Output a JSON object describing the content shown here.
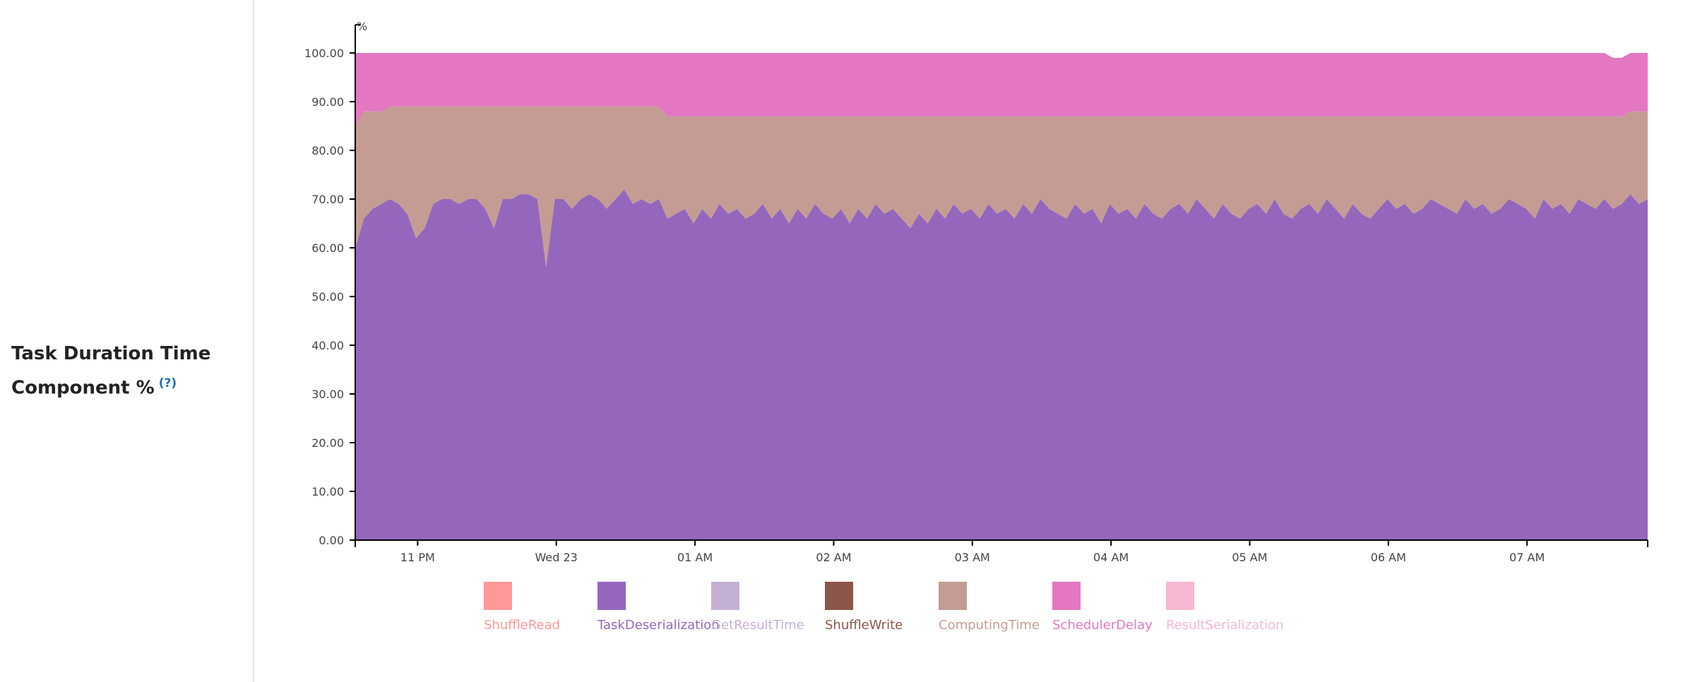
{
  "metric": {
    "title": "Task Duration Time Component %",
    "help": "(?)"
  },
  "chart_data": {
    "type": "area",
    "stacked": true,
    "ylabel": "%",
    "ylim": [
      0,
      100
    ],
    "yticks": [
      "0.00",
      "10.00",
      "20.00",
      "30.00",
      "40.00",
      "50.00",
      "60.00",
      "70.00",
      "80.00",
      "90.00",
      "100.00"
    ],
    "x_time_range_hours": [
      22.55,
      31.87
    ],
    "xticks": [
      {
        "label": "11 PM",
        "hour": 23
      },
      {
        "label": "Wed 23",
        "hour": 24
      },
      {
        "label": "01 AM",
        "hour": 25
      },
      {
        "label": "02 AM",
        "hour": 26
      },
      {
        "label": "03 AM",
        "hour": 27
      },
      {
        "label": "04 AM",
        "hour": 28
      },
      {
        "label": "05 AM",
        "hour": 29
      },
      {
        "label": "06 AM",
        "hour": 30
      },
      {
        "label": "07 AM",
        "hour": 31
      }
    ],
    "series": [
      {
        "name": "ShuffleRead",
        "color": "#ff9896",
        "values": [
          0,
          0,
          0,
          0,
          0,
          0,
          0,
          0,
          0,
          0,
          0,
          0,
          0,
          0,
          0,
          0,
          0,
          0,
          0,
          0,
          0,
          0,
          0,
          0,
          0,
          0,
          0,
          0,
          0,
          0,
          0,
          0,
          0,
          0,
          0,
          0,
          0,
          0,
          0,
          0,
          0,
          0,
          0,
          0,
          0,
          0,
          0,
          0,
          0,
          0,
          0,
          0,
          0,
          0,
          0,
          0,
          0,
          0,
          0,
          0,
          0,
          0,
          0,
          0,
          0,
          0,
          0,
          0,
          0,
          0,
          0,
          0,
          0,
          0,
          0,
          0,
          0,
          0,
          0,
          0,
          0,
          0,
          0,
          0,
          0,
          0,
          0,
          0,
          0,
          0,
          0,
          0,
          0,
          0,
          0,
          0,
          0,
          0,
          0,
          0,
          0,
          0,
          0,
          0,
          0,
          0,
          0,
          0,
          0,
          0,
          0,
          0,
          0,
          0,
          0,
          0,
          0,
          0,
          0,
          0,
          0,
          0,
          0,
          0,
          0,
          0,
          0,
          0,
          0,
          0,
          0,
          0,
          0,
          0,
          0,
          0,
          0,
          0,
          0,
          0,
          0,
          0,
          0,
          0,
          0,
          0,
          0,
          0,
          0,
          0
        ]
      },
      {
        "name": "TaskDeserialization",
        "color": "#9467bd",
        "values": [
          60,
          66,
          68,
          69,
          70,
          69,
          67,
          62,
          64,
          69,
          70,
          70,
          69,
          70,
          70,
          68,
          64,
          70,
          70,
          71,
          71,
          70,
          56,
          70,
          70,
          68,
          70,
          71,
          70,
          68,
          70,
          72,
          69,
          70,
          69,
          70,
          66,
          67,
          68,
          65,
          68,
          66,
          69,
          67,
          68,
          66,
          67,
          69,
          66,
          68,
          65,
          68,
          66,
          69,
          67,
          66,
          68,
          65,
          68,
          66,
          69,
          67,
          68,
          66,
          64,
          67,
          65,
          68,
          66,
          69,
          67,
          68,
          66,
          69,
          67,
          68,
          66,
          69,
          67,
          70,
          68,
          67,
          66,
          69,
          67,
          68,
          65,
          69,
          67,
          68,
          66,
          69,
          67,
          66,
          68,
          69,
          67,
          70,
          68,
          66,
          69,
          67,
          66,
          68,
          69,
          67,
          70,
          67,
          66,
          68,
          69,
          67,
          70,
          68,
          66,
          69,
          67,
          66,
          68,
          70,
          68,
          69,
          67,
          68,
          70,
          69,
          68,
          67,
          70,
          68,
          69,
          67,
          68,
          70,
          69,
          68,
          66,
          70,
          68,
          69,
          67,
          70,
          69,
          68,
          70,
          68,
          69,
          71,
          69,
          70,
          71,
          70,
          68,
          69,
          70,
          71,
          69,
          70,
          68,
          69
        ]
      },
      {
        "name": "GetResultTime",
        "color": "#c5b0d5",
        "values": [
          0,
          0,
          0,
          0,
          0,
          0,
          0,
          0,
          0,
          0,
          0,
          0,
          0,
          0,
          0,
          0,
          0,
          0,
          0,
          0,
          0,
          0,
          0,
          0,
          0,
          0,
          0,
          0,
          0,
          0,
          0,
          0,
          0,
          0,
          0,
          0,
          0,
          0,
          0,
          0,
          0,
          0,
          0,
          0,
          0,
          0,
          0,
          0,
          0,
          0,
          0,
          0,
          0,
          0,
          0,
          0,
          0,
          0,
          0,
          0,
          0,
          0,
          0,
          0,
          0,
          0,
          0,
          0,
          0,
          0,
          0,
          0,
          0,
          0,
          0,
          0,
          0,
          0,
          0,
          0,
          0,
          0,
          0,
          0,
          0,
          0,
          0,
          0,
          0,
          0,
          0,
          0,
          0,
          0,
          0,
          0,
          0,
          0,
          0,
          0,
          0,
          0,
          0,
          0,
          0,
          0,
          0,
          0,
          0,
          0,
          0,
          0,
          0,
          0,
          0,
          0,
          0,
          0,
          0,
          0,
          0,
          0,
          0,
          0,
          0,
          0,
          0,
          0,
          0,
          0,
          0,
          0,
          0,
          0,
          0,
          0,
          0,
          0,
          0,
          0,
          0,
          0,
          0,
          0,
          0,
          0,
          0,
          0,
          0,
          0
        ]
      },
      {
        "name": "ShuffleWrite",
        "color": "#8c564b",
        "values": [
          0,
          0,
          0,
          0,
          0,
          0,
          0,
          0,
          0,
          0,
          0,
          0,
          0,
          0,
          0,
          0,
          0,
          0,
          0,
          0,
          0,
          0,
          0,
          0,
          0,
          0,
          0,
          0,
          0,
          0,
          0,
          0,
          0,
          0,
          0,
          0,
          0,
          0,
          0,
          0,
          0,
          0,
          0,
          0,
          0,
          0,
          0,
          0,
          0,
          0,
          0,
          0,
          0,
          0,
          0,
          0,
          0,
          0,
          0,
          0,
          0,
          0,
          0,
          0,
          0,
          0,
          0,
          0,
          0,
          0,
          0,
          0,
          0,
          0,
          0,
          0,
          0,
          0,
          0,
          0,
          0,
          0,
          0,
          0,
          0,
          0,
          0,
          0,
          0,
          0,
          0,
          0,
          0,
          0,
          0,
          0,
          0,
          0,
          0,
          0,
          0,
          0,
          0,
          0,
          0,
          0,
          0,
          0,
          0,
          0,
          0,
          0,
          0,
          0,
          0,
          0,
          0,
          0,
          0,
          0,
          0,
          0,
          0,
          0,
          0,
          0,
          0,
          0,
          0,
          0,
          0,
          0,
          0,
          0,
          0,
          0,
          0,
          0,
          0,
          0,
          0,
          0,
          0,
          0,
          0,
          0,
          0,
          0,
          0,
          0
        ]
      },
      {
        "name": "ComputingTime",
        "color": "#c49c94",
        "values": [
          25,
          22,
          20,
          19,
          19,
          20,
          22,
          27,
          25,
          20,
          19,
          19,
          20,
          19,
          19,
          21,
          25,
          19,
          19,
          18,
          18,
          19,
          33,
          19,
          19,
          21,
          19,
          18,
          19,
          21,
          19,
          17,
          20,
          19,
          20,
          19,
          21,
          20,
          19,
          22,
          19,
          21,
          18,
          20,
          19,
          21,
          20,
          18,
          21,
          19,
          22,
          19,
          21,
          18,
          20,
          21,
          19,
          22,
          19,
          21,
          18,
          20,
          19,
          21,
          23,
          20,
          22,
          19,
          21,
          18,
          20,
          19,
          21,
          18,
          20,
          19,
          21,
          18,
          20,
          17,
          19,
          20,
          21,
          18,
          20,
          19,
          22,
          18,
          20,
          19,
          21,
          18,
          20,
          21,
          19,
          18,
          20,
          17,
          19,
          21,
          18,
          20,
          21,
          19,
          18,
          20,
          17,
          20,
          21,
          19,
          18,
          20,
          17,
          19,
          21,
          18,
          20,
          21,
          19,
          17,
          19,
          18,
          20,
          19,
          17,
          18,
          19,
          20,
          17,
          19,
          18,
          20,
          19,
          17,
          18,
          19,
          21,
          17,
          19,
          18,
          20,
          17,
          18,
          19,
          17,
          19,
          18,
          17,
          19,
          18,
          17,
          18,
          20,
          19,
          18,
          17,
          19,
          18,
          20,
          19
        ]
      },
      {
        "name": "SchedulerDelay",
        "color": "#e377c2",
        "values": [
          15,
          12,
          12,
          12,
          11,
          11,
          11,
          11,
          11,
          11,
          11,
          11,
          11,
          11,
          11,
          11,
          11,
          11,
          11,
          11,
          11,
          11,
          11,
          11,
          11,
          11,
          11,
          11,
          11,
          11,
          11,
          11,
          11,
          11,
          11,
          11,
          13,
          13,
          13,
          13,
          13,
          13,
          13,
          13,
          13,
          13,
          13,
          13,
          13,
          13,
          13,
          13,
          13,
          13,
          13,
          13,
          13,
          13,
          13,
          13,
          13,
          13,
          13,
          13,
          13,
          13,
          13,
          13,
          13,
          13,
          13,
          13,
          13,
          13,
          13,
          13,
          13,
          13,
          13,
          13,
          13,
          13,
          13,
          13,
          13,
          13,
          13,
          13,
          13,
          13,
          13,
          13,
          13,
          13,
          13,
          13,
          13,
          13,
          13,
          13,
          13,
          13,
          13,
          13,
          13,
          13,
          13,
          13,
          13,
          13,
          13,
          13,
          13,
          13,
          13,
          13,
          13,
          13,
          13,
          13,
          13,
          13,
          13,
          13,
          13,
          13,
          13,
          13,
          13,
          13,
          13,
          13,
          13,
          13,
          13,
          13,
          13,
          13,
          13,
          13,
          13,
          13,
          13,
          13,
          13,
          12,
          12,
          12,
          12,
          12,
          12,
          12,
          12,
          12,
          12,
          12,
          12,
          12,
          12,
          12
        ]
      },
      {
        "name": "ResultSerialization",
        "color": "#f7b6d2",
        "values": [
          0,
          0,
          0,
          0,
          0,
          0,
          0,
          0,
          0,
          0,
          0,
          0,
          0,
          0,
          0,
          0,
          0,
          0,
          0,
          0,
          0,
          0,
          0,
          0,
          0,
          0,
          0,
          0,
          0,
          0,
          0,
          0,
          0,
          0,
          0,
          0,
          0,
          0,
          0,
          0,
          0,
          0,
          0,
          0,
          0,
          0,
          0,
          0,
          0,
          0,
          0,
          0,
          0,
          0,
          0,
          0,
          0,
          0,
          0,
          0,
          0,
          0,
          0,
          0,
          0,
          0,
          0,
          0,
          0,
          0,
          0,
          0,
          0,
          0,
          0,
          0,
          0,
          0,
          0,
          0,
          0,
          0,
          0,
          0,
          0,
          0,
          0,
          0,
          0,
          0,
          0,
          0,
          0,
          0,
          0,
          0,
          0,
          0,
          0,
          0,
          0,
          0,
          0,
          0,
          0,
          0,
          0,
          0,
          0,
          0,
          0,
          0,
          0,
          0,
          0,
          0,
          0,
          0,
          0,
          0,
          0,
          0,
          0,
          0,
          0,
          0,
          0,
          0,
          0,
          0,
          0,
          0,
          0,
          0,
          0,
          0,
          0,
          0,
          0,
          0,
          0,
          0,
          0,
          0,
          0,
          0,
          0,
          0,
          0,
          0
        ]
      }
    ],
    "legend": [
      {
        "name": "ShuffleRead",
        "color": "#ff9896"
      },
      {
        "name": "TaskDeserialization",
        "color": "#9467bd"
      },
      {
        "name": "GetResultTime",
        "color": "#c5b0d5"
      },
      {
        "name": "ShuffleWrite",
        "color": "#8c564b"
      },
      {
        "name": "ComputingTime",
        "color": "#c49c94"
      },
      {
        "name": "SchedulerDelay",
        "color": "#e377c2"
      },
      {
        "name": "ResultSerialization",
        "color": "#f7b6d2"
      }
    ]
  }
}
